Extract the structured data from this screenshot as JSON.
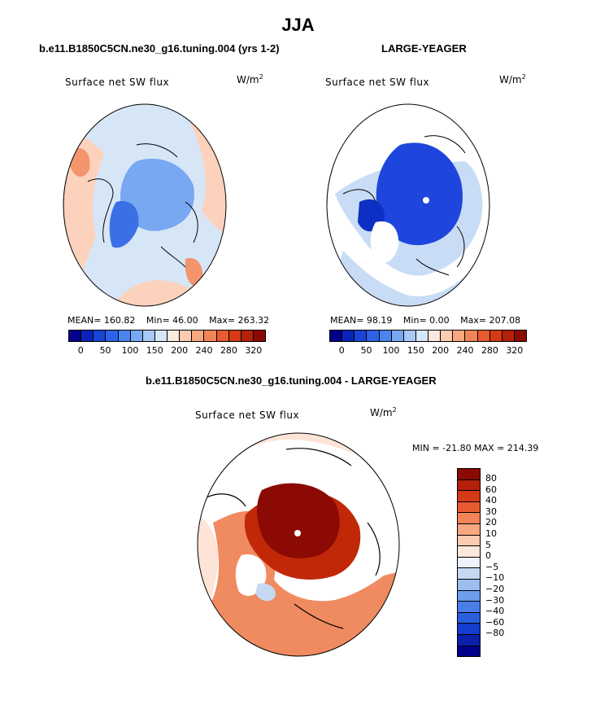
{
  "title": "JJA",
  "panels": {
    "left": {
      "title": "b.e11.B1850C5CN.ne30_g16.tuning.004 (yrs 1-2)",
      "variable": "Surface net SW flux",
      "units_base": "W/m",
      "units_exp": "2",
      "stats": {
        "mean_label": "MEAN=",
        "mean": "160.82",
        "min_label": "Min=",
        "min": "46.00",
        "max_label": "Max=",
        "max": "263.32"
      }
    },
    "right": {
      "title": "LARGE-YEAGER",
      "variable": "Surface net SW flux",
      "units_base": "W/m",
      "units_exp": "2",
      "stats": {
        "mean_label": "MEAN=",
        "mean": "98.19",
        "min_label": "Min=",
        "min": "0.00",
        "max_label": "Max=",
        "max": "207.08"
      }
    },
    "diff": {
      "title": "b.e11.B1850C5CN.ne30_g16.tuning.004 - LARGE-YEAGER",
      "variable": "Surface net SW flux",
      "units_base": "W/m",
      "units_exp": "2",
      "stats": "MIN = -21.80 MAX = 214.39"
    }
  },
  "colorbar_abs": {
    "colors": [
      "#00008b",
      "#0a24b8",
      "#1a44d6",
      "#2e62e6",
      "#4a84ef",
      "#78a8f2",
      "#a9c8f4",
      "#d6e6f8",
      "#fde8de",
      "#fccbb0",
      "#f8a880",
      "#f28457",
      "#e85a30",
      "#d43a16",
      "#b4200a",
      "#8b0a04"
    ],
    "ticks": [
      "0",
      "50",
      "100",
      "150",
      "200",
      "240",
      "280",
      "320"
    ]
  },
  "colorbar_diff": {
    "colors": [
      "#8b0a04",
      "#b4200a",
      "#d43a16",
      "#e85a30",
      "#f28457",
      "#f8a880",
      "#fccbb0",
      "#fde8de",
      "#eef3fb",
      "#c6d9f3",
      "#9dbdf0",
      "#6e9ded",
      "#4a7ee8",
      "#2b5fe0",
      "#153ccc",
      "#0a20a8",
      "#00008b"
    ],
    "labels": [
      "80",
      "60",
      "40",
      "30",
      "20",
      "10",
      "5",
      "0",
      "−5",
      "−10",
      "−20",
      "−30",
      "−40",
      "−60",
      "−80"
    ]
  },
  "map_colors": {
    "left_bg": "#d7e6f7",
    "left_warm": "#fcd2bd",
    "left_warmer": "#f3946c",
    "left_ice": "#78a8f2",
    "left_deep": "#3a6fe6",
    "right_bg": "#ffffff",
    "right_ocean": "#c9dcf5",
    "right_ice": "#1e46dc",
    "right_deep": "#0d2fc4",
    "diff_bg": "#fde4d6",
    "diff_mid": "#f08a60",
    "diff_dark": "#c02808",
    "diff_darkest": "#8b0a04"
  }
}
